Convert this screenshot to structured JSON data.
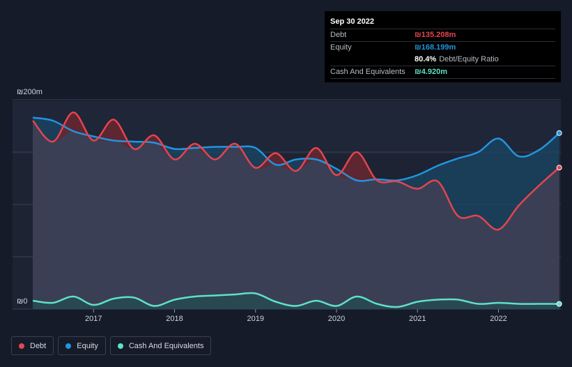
{
  "tooltip": {
    "date": "Sep 30 2022",
    "rows": [
      {
        "label": "Debt",
        "value": "₪135.208m",
        "color": "#e4454f"
      },
      {
        "label": "Equity",
        "value": "₪168.199m",
        "color": "#2394df"
      },
      {
        "label": "",
        "value": "80.4%",
        "suffix": "Debt/Equity Ratio",
        "color": "#ffffff"
      },
      {
        "label": "Cash And Equivalents",
        "value": "₪4.920m",
        "color": "#5ee1c9"
      }
    ]
  },
  "legend": [
    {
      "label": "Debt",
      "color": "#e4454f"
    },
    {
      "label": "Equity",
      "color": "#2394df"
    },
    {
      "label": "Cash And Equivalents",
      "color": "#5ee1c9"
    }
  ],
  "chart_data": {
    "type": "line",
    "ylim": [
      0,
      200
    ],
    "y_tick_labels": [
      "₪200m",
      "₪0"
    ],
    "x_tick_labels": [
      "2017",
      "2018",
      "2019",
      "2020",
      "2021",
      "2022"
    ],
    "x_tick_values": [
      2017,
      2018,
      2019,
      2020,
      2021,
      2022
    ],
    "grid": true,
    "legend_position": "bottom-left",
    "series": [
      {
        "name": "Debt",
        "color": "#e4454f",
        "x": [
          2016.25,
          2016.5,
          2016.75,
          2017.0,
          2017.25,
          2017.5,
          2017.75,
          2018.0,
          2018.25,
          2018.5,
          2018.75,
          2019.0,
          2019.25,
          2019.5,
          2019.75,
          2020.0,
          2020.25,
          2020.5,
          2020.75,
          2021.0,
          2021.25,
          2021.5,
          2021.75,
          2022.0,
          2022.25,
          2022.5,
          2022.75
        ],
        "y": [
          180,
          160,
          188,
          161,
          181,
          153,
          166,
          143,
          158,
          143,
          158,
          135,
          149,
          132,
          154,
          128,
          150,
          123,
          122,
          115,
          122,
          89,
          89,
          76,
          99,
          118,
          135.208
        ]
      },
      {
        "name": "Equity",
        "color": "#2394df",
        "x": [
          2016.25,
          2016.5,
          2016.75,
          2017.0,
          2017.25,
          2017.5,
          2017.75,
          2018.0,
          2018.25,
          2018.5,
          2018.75,
          2019.0,
          2019.25,
          2019.5,
          2019.75,
          2020.0,
          2020.25,
          2020.5,
          2020.75,
          2021.0,
          2021.25,
          2021.5,
          2021.75,
          2022.0,
          2022.25,
          2022.5,
          2022.75
        ],
        "y": [
          183,
          180,
          170,
          165,
          161,
          160,
          159,
          153,
          154,
          155,
          155,
          154,
          138,
          143,
          143,
          134,
          123,
          124,
          123,
          128,
          137,
          144,
          150,
          163,
          146,
          152,
          168.199
        ]
      },
      {
        "name": "Cash And Equivalents",
        "color": "#5ee1c9",
        "x": [
          2016.25,
          2016.5,
          2016.75,
          2017.0,
          2017.25,
          2017.5,
          2017.75,
          2018.0,
          2018.25,
          2018.5,
          2018.75,
          2019.0,
          2019.25,
          2019.5,
          2019.75,
          2020.0,
          2020.25,
          2020.5,
          2020.75,
          2021.0,
          2021.25,
          2021.5,
          2021.75,
          2022.0,
          2022.25,
          2022.5,
          2022.75
        ],
        "y": [
          8,
          6,
          12,
          4,
          10,
          11,
          3,
          9,
          12,
          13,
          14,
          15,
          7,
          3,
          8,
          3,
          12,
          5,
          2,
          7,
          9,
          9,
          5,
          6,
          5,
          5,
          4.92
        ]
      }
    ]
  }
}
